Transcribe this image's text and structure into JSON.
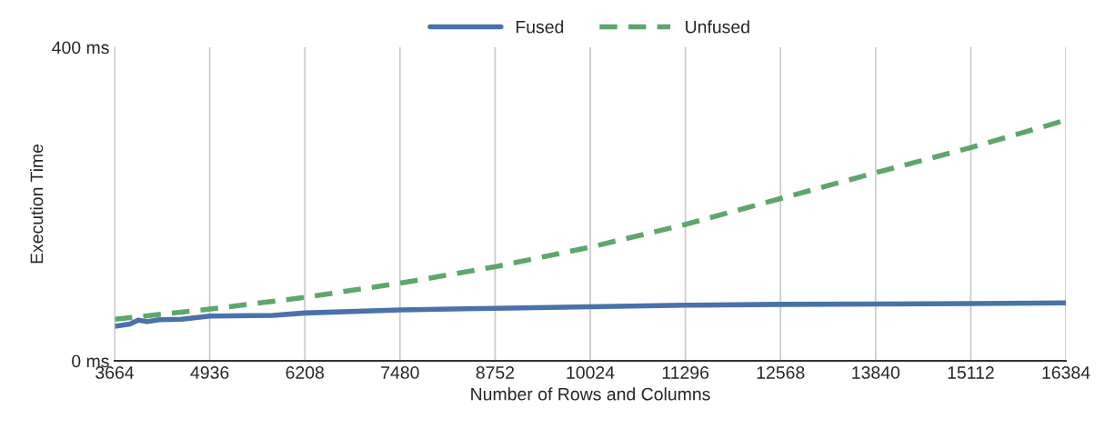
{
  "chart_data": {
    "type": "line",
    "xlabel": "Number of Rows and Columns",
    "ylabel": "Execution Time",
    "xlim": [
      3664,
      16384
    ],
    "xticks": [
      3664,
      4936,
      6208,
      7480,
      8752,
      10024,
      11296,
      12568,
      13840,
      15112,
      16384
    ],
    "ylim": [
      0,
      400
    ],
    "yticks": [
      {
        "value": 0,
        "label": "0 ms"
      },
      {
        "value": 400,
        "label": "400 ms"
      }
    ],
    "grid": "x",
    "legend": "top",
    "series": [
      {
        "name": "Fused",
        "color": "#4a72aa",
        "line_style": "solid",
        "x": [
          3664,
          3870,
          3980,
          4100,
          4260,
          4560,
          4936,
          5780,
          6208,
          7480,
          8752,
          10024,
          11296,
          12568,
          13840,
          15112,
          16384
        ],
        "values": [
          44,
          47,
          52,
          50,
          52.5,
          53,
          57,
          58,
          61,
          65,
          67,
          69,
          71,
          72,
          72.5,
          73,
          74
        ]
      },
      {
        "name": "Unfused",
        "color": "#5ea66c",
        "line_style": "dashed",
        "x": [
          3664,
          4936,
          6208,
          7480,
          8752,
          10024,
          11296,
          12568,
          13840,
          15112,
          16384
        ],
        "values": [
          53,
          66,
          81,
          99,
          120,
          145,
          174,
          207,
          240,
          272,
          307
        ]
      }
    ]
  }
}
